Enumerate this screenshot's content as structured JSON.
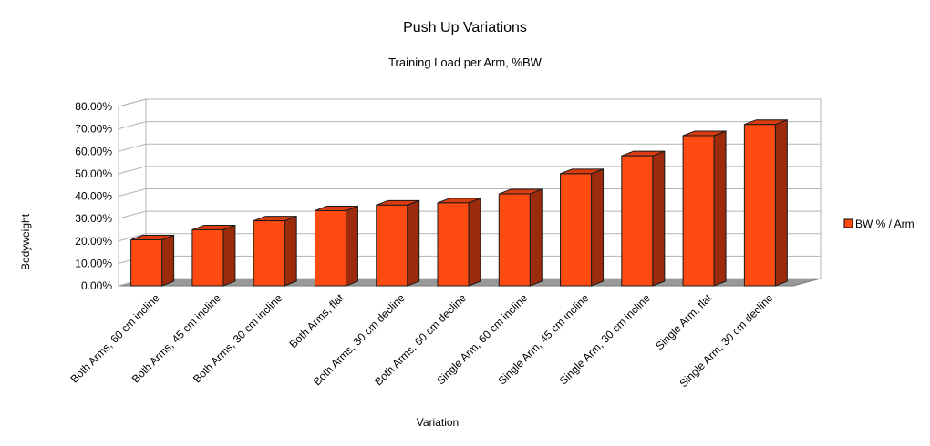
{
  "chart_data": {
    "type": "bar",
    "title": "Push Up Variations",
    "subtitle": "Training Load per Arm, %BW",
    "xlabel": "Variation",
    "ylabel": "Bodyweight",
    "ylim": [
      0,
      80
    ],
    "y_ticks": [
      "0.00%",
      "10.00%",
      "20.00%",
      "30.00%",
      "40.00%",
      "50.00%",
      "60.00%",
      "70.00%",
      "80.00%"
    ],
    "categories": [
      "Both Arms, 60 cm incline",
      "Both Arms, 45 cm incline",
      "Both Arms, 30 cm incline",
      "Both Arms, flat",
      "Both Arms, 30 cm decline",
      "Both Arms, 60 cm decline",
      "Single Arm, 60 cm incline",
      "Single Arm, 45 cm incline",
      "Single Arm, 30 cm incline",
      "Single Arm, flat",
      "Single Arm, 30 cm decline"
    ],
    "series": [
      {
        "name": "BW % / Arm",
        "color": "#ff4a12",
        "values": [
          20.5,
          25,
          29,
          33.5,
          36,
          37,
          41,
          50,
          58,
          67,
          72
        ]
      }
    ],
    "grid": true,
    "legend": "right",
    "style": "3d"
  }
}
